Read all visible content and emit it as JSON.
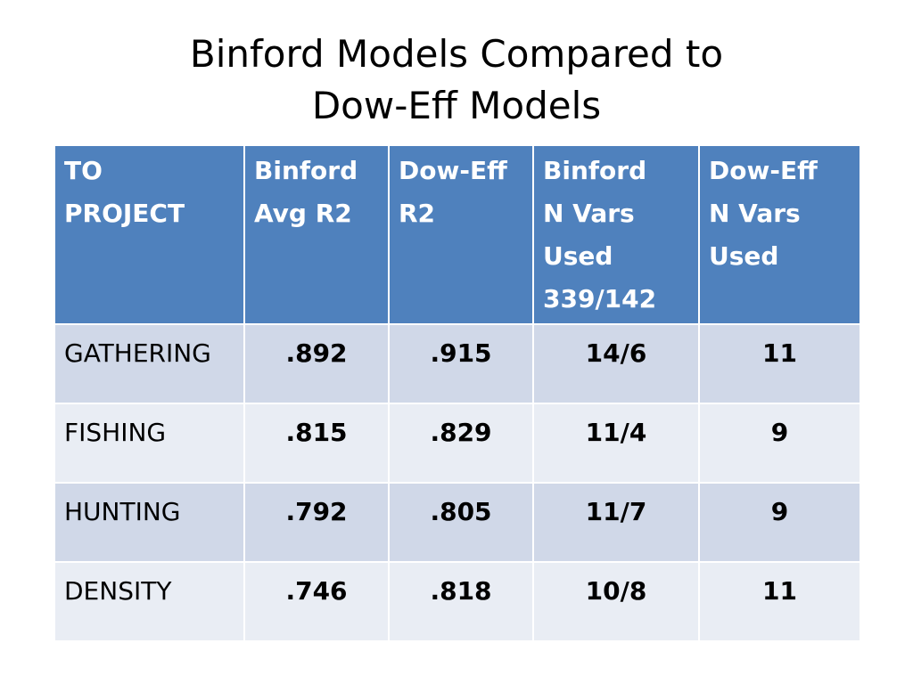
{
  "slide": {
    "title_line1": "Binford Models Compared to",
    "title_line2": "Dow-Eff Models"
  },
  "table": {
    "headers": [
      [
        "TO",
        "PROJECT"
      ],
      [
        "Binford",
        "Avg R2"
      ],
      [
        "Dow-Eff",
        "R2"
      ],
      [
        "Binford",
        "N Vars",
        "Used",
        "339/142"
      ],
      [
        "Dow-Eff",
        "N Vars",
        "Used"
      ]
    ],
    "rows": [
      [
        "GATHERING",
        ".892",
        ".915",
        "14/6",
        "11"
      ],
      [
        "FISHING",
        ".815",
        ".829",
        "11/4",
        "9"
      ],
      [
        "HUNTING",
        ".792",
        ".805",
        "11/7",
        "9"
      ],
      [
        "DENSITY",
        ".746",
        ".818",
        "10/8",
        "11"
      ]
    ]
  },
  "colors": {
    "header_bg": "#4f81bd",
    "row_odd_bg": "#d0d8e8",
    "row_even_bg": "#e9edf4"
  }
}
